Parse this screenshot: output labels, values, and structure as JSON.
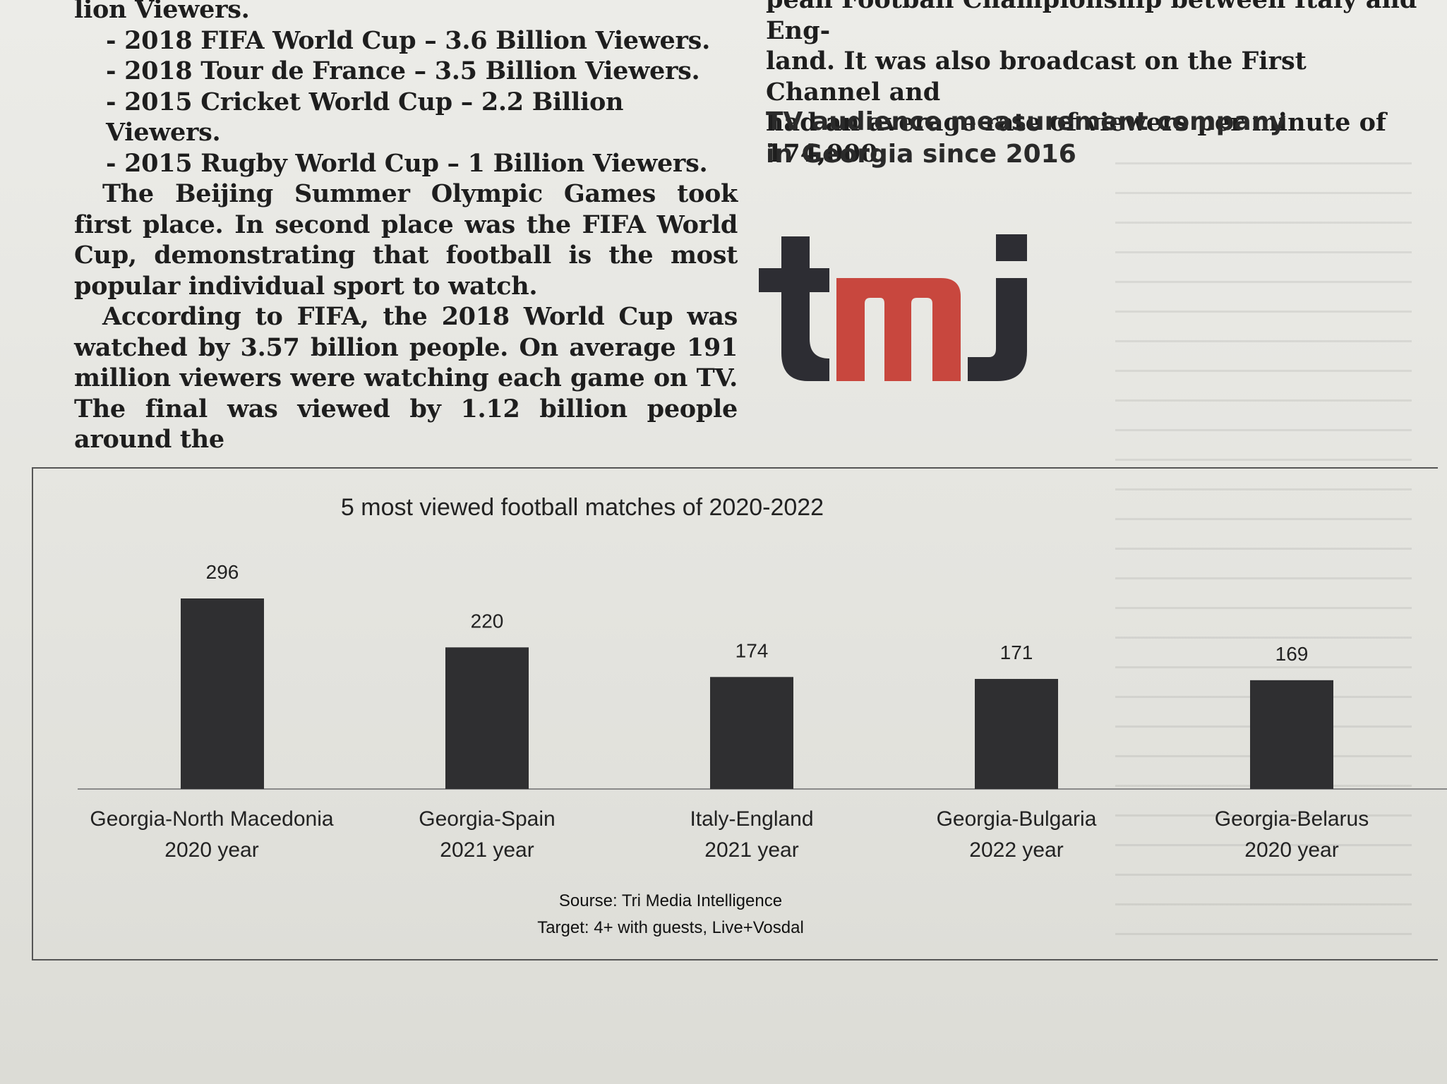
{
  "article_left": {
    "line0": "lion Viewers.",
    "list": [
      "- 2018 FIFA World Cup – 3.6 Billion Viewers.",
      "- 2018 Tour de France – 3.5 Billion Viewers.",
      "- 2015 Cricket World Cup – 2.2 Billion Viewers.",
      "- 2015 Rugby World Cup – 1 Billion Viewers."
    ],
    "paragraph1": "The Beijing Summer Olympic Games took first place. In second place was the FIFA World Cup, demonstrating that football is the most popular individual sport to watch.",
    "paragraph2": "According to FIFA, the 2018 World Cup was watched by 3.57 billion people. On average 191 million viewers were watching each game on TV. The final was viewed by 1.12 billion people around the"
  },
  "article_right": {
    "lines": [
      "pean Football Championship between Italy and Eng-",
      "land. It was also broadcast on the First Channel and",
      "had an average rate of viewers per minute of 174,000."
    ]
  },
  "heading": {
    "line1": "TV audience measurement company",
    "line2": "in Georgia since 2016"
  },
  "logo": {
    "text": "tmj",
    "colors": {
      "dark": "#2d2d33",
      "red": "#c8473e"
    }
  },
  "chart_data": {
    "type": "bar",
    "title": "5 most viewed football matches of 2020-2022",
    "categories": [
      [
        "Georgia-North Macedonia",
        "2020 year"
      ],
      [
        "Georgia-Spain",
        "2021 year"
      ],
      [
        "Italy-England",
        "2021 year"
      ],
      [
        "Georgia-Bulgaria",
        "2022 year"
      ],
      [
        "Georgia-Belarus",
        "2020 year"
      ]
    ],
    "values": [
      296,
      220,
      174,
      171,
      169
    ],
    "data_labels": [
      "296",
      "220",
      "174",
      "171",
      "169"
    ],
    "bar_color": "#2f2f31",
    "xlabel": "",
    "ylabel": "",
    "ylim": [
      0,
      300
    ],
    "grid": false,
    "legend": "none"
  },
  "source": {
    "line1": "Sourse: Tri Media Intelligence",
    "line2": "Target: 4+ with guests, Live+Vosdal"
  }
}
